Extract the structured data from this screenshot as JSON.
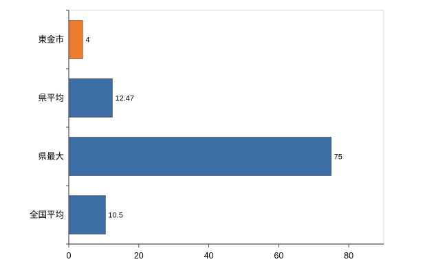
{
  "chart_data": {
    "type": "bar",
    "orientation": "horizontal",
    "title": "",
    "xlabel": "",
    "ylabel": "",
    "categories": [
      "東金市",
      "県平均",
      "県最大",
      "全国平均"
    ],
    "values": [
      4,
      12.47,
      75,
      10.5
    ],
    "value_labels": [
      "4",
      "12.47",
      "75",
      "10.5"
    ],
    "bar_colors": [
      "#ED7D31",
      "#3C6DA5",
      "#3C6DA5",
      "#3C6DA5"
    ],
    "x_ticks": [
      0,
      20,
      40,
      60,
      80
    ],
    "xlim": [
      0,
      90
    ],
    "grid": false,
    "legend_position": "none"
  },
  "style": {
    "axis_color": "#4d4d4d",
    "tick_color": "#4d4d4d",
    "border_color": "#d9d9d9",
    "background": "#ffffff",
    "label_color": "#000000"
  }
}
